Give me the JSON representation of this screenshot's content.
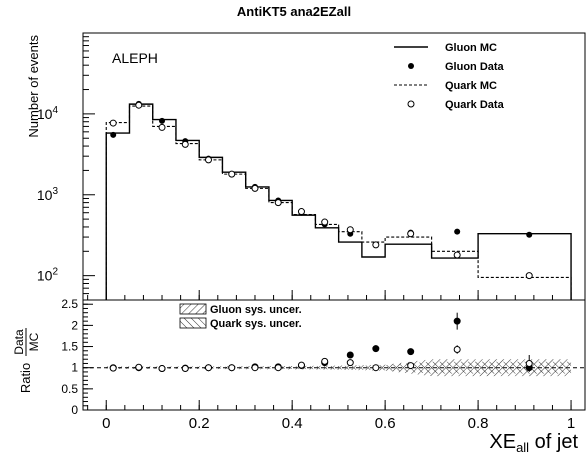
{
  "title": "AntiKT5 ana2EZall",
  "colors": {
    "line": "#000000",
    "background": "#ffffff",
    "hatch": "#000000"
  },
  "chart_data": [
    {
      "type": "line",
      "panel": "top",
      "experiment_label": "ALEPH",
      "ylabel": "Number of events",
      "yscale": "log",
      "xlim": [
        -0.05,
        1.03
      ],
      "ylim": [
        50,
        100000
      ],
      "yticks": [
        {
          "value": 100,
          "base": "10",
          "exp": "2"
        },
        {
          "value": 1000,
          "base": "10",
          "exp": "3"
        },
        {
          "value": 10000,
          "base": "10",
          "exp": "4"
        }
      ],
      "legend_position": "top-right",
      "bin_edges": [
        0,
        0.05,
        0.1,
        0.15,
        0.2,
        0.25,
        0.3,
        0.35,
        0.4,
        0.45,
        0.5,
        0.55,
        0.6,
        0.7,
        0.8,
        1.0
      ],
      "series": [
        {
          "name": "Gluon MC",
          "style": "solid-step",
          "values": [
            5800,
            13200,
            8500,
            4700,
            2900,
            1900,
            1250,
            850,
            560,
            390,
            260,
            170,
            245,
            165,
            330
          ]
        },
        {
          "name": "Gluon Data",
          "style": "filled-marker",
          "x": [
            0.015,
            0.07,
            0.12,
            0.17,
            0.22,
            0.27,
            0.32,
            0.37,
            0.42,
            0.47,
            0.525,
            0.58,
            0.655,
            0.755,
            0.91
          ],
          "values": [
            5500,
            13300,
            8200,
            4600,
            2800,
            1800,
            1250,
            850,
            600,
            430,
            330,
            240,
            340,
            350,
            320
          ]
        },
        {
          "name": "Quark MC",
          "style": "dashed-step",
          "values": [
            7800,
            12500,
            7000,
            4300,
            2700,
            1800,
            1200,
            800,
            570,
            430,
            350,
            260,
            300,
            200,
            95
          ]
        },
        {
          "name": "Quark Data",
          "style": "open-marker",
          "x": [
            0.015,
            0.07,
            0.12,
            0.17,
            0.22,
            0.27,
            0.32,
            0.37,
            0.42,
            0.47,
            0.525,
            0.58,
            0.655,
            0.755,
            0.91
          ],
          "values": [
            7700,
            12800,
            6800,
            4200,
            2700,
            1800,
            1200,
            800,
            620,
            460,
            370,
            240,
            330,
            180,
            100
          ]
        }
      ]
    },
    {
      "type": "scatter",
      "panel": "bottom",
      "ylabel_prefix": "Ratio",
      "ylabel_num": "Data",
      "ylabel_den": "MC",
      "xlabel_main": "XE",
      "xlabel_sub": "all",
      "xlabel_suffix": " of jet",
      "xlim": [
        -0.05,
        1.03
      ],
      "ylim": [
        0,
        2.6
      ],
      "xticks": [
        "0",
        "0.2",
        "0.4",
        "0.6",
        "0.8",
        "1"
      ],
      "xtick_values": [
        0,
        0.2,
        0.4,
        0.6,
        0.8,
        1.0
      ],
      "yticks": [
        "0",
        "0.5",
        "1",
        "1.5",
        "2",
        "2.5"
      ],
      "ytick_values": [
        0,
        0.5,
        1.0,
        1.5,
        2.0,
        2.5
      ],
      "reference_line": 1.0,
      "legend_position": "top-left",
      "bands": [
        {
          "name": "Gluon sys. uncer.",
          "x": [
            0,
            0.2,
            0.4,
            0.5,
            0.6,
            0.7,
            0.8,
            1.0
          ],
          "low": [
            0.97,
            0.97,
            0.96,
            0.95,
            0.93,
            0.8,
            0.8,
            0.8
          ],
          "high": [
            1.03,
            1.03,
            1.04,
            1.05,
            1.07,
            1.2,
            1.2,
            1.2
          ]
        },
        {
          "name": "Quark sys. uncer.",
          "x": [
            0,
            0.2,
            0.4,
            0.5,
            0.6,
            0.7,
            0.8,
            1.0
          ],
          "low": [
            0.98,
            0.98,
            0.97,
            0.96,
            0.94,
            0.86,
            0.86,
            0.86
          ],
          "high": [
            1.02,
            1.02,
            1.03,
            1.04,
            1.06,
            1.14,
            1.14,
            1.14
          ]
        }
      ],
      "series": [
        {
          "name": "Gluon",
          "style": "filled-marker",
          "x": [
            0.015,
            0.07,
            0.12,
            0.17,
            0.22,
            0.27,
            0.32,
            0.37,
            0.42,
            0.47,
            0.525,
            0.58,
            0.655,
            0.755,
            0.91
          ],
          "values": [
            1.0,
            1.0,
            0.98,
            0.99,
            1.0,
            1.0,
            1.02,
            1.02,
            1.05,
            1.12,
            1.3,
            1.45,
            1.38,
            2.1,
            1.0
          ],
          "errors": [
            0.01,
            0.01,
            0.01,
            0.01,
            0.01,
            0.01,
            0.02,
            0.02,
            0.03,
            0.04,
            0.06,
            0.08,
            0.07,
            0.2,
            0.08
          ]
        },
        {
          "name": "Quark",
          "style": "open-marker",
          "x": [
            0.015,
            0.07,
            0.12,
            0.17,
            0.22,
            0.27,
            0.32,
            0.37,
            0.42,
            0.47,
            0.525,
            0.58,
            0.655,
            0.755,
            0.91
          ],
          "values": [
            0.99,
            1.01,
            0.98,
            0.98,
            1.0,
            1.0,
            1.0,
            1.0,
            1.06,
            1.15,
            1.12,
            1.0,
            1.05,
            1.43,
            1.1
          ],
          "errors": [
            0.01,
            0.01,
            0.01,
            0.01,
            0.01,
            0.01,
            0.02,
            0.02,
            0.03,
            0.04,
            0.05,
            0.05,
            0.05,
            0.1,
            0.2
          ]
        }
      ]
    }
  ]
}
